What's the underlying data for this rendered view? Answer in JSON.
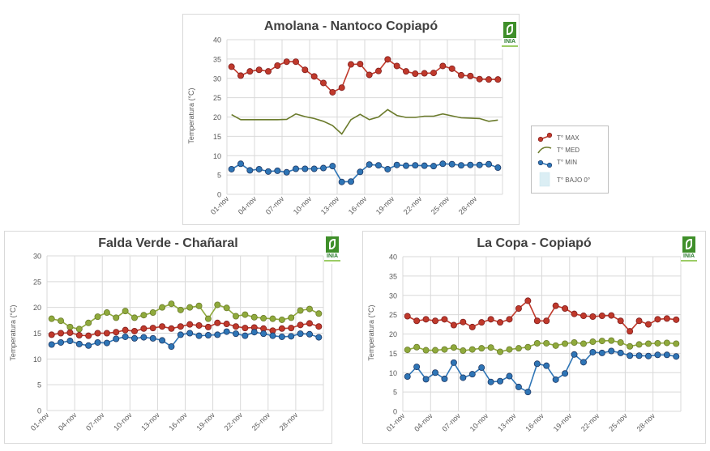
{
  "legend": {
    "max_label": "T° MAX",
    "med_label": "T° MED",
    "min_label": "T° MIN",
    "below_label": "T° BAJO 0°"
  },
  "logo_text": "INIA",
  "colors": {
    "max": "#c0392b",
    "max_dark": "#7f1d1d",
    "med": "#8faa3c",
    "med_line": "#6b7b2c",
    "min": "#2e75b6",
    "min_dark": "#1f3864",
    "below_fill": "#dbeef4",
    "grid": "#d9d9d9"
  },
  "chart_data": [
    {
      "type": "line",
      "title": "Amolana - Nantoco Copiapó",
      "ylabel": "Temperatura (°C)",
      "xlabel": "",
      "ylim": [
        0,
        40
      ],
      "yticks": [
        0,
        5,
        10,
        15,
        20,
        25,
        30,
        35,
        40
      ],
      "x_tick_labels": [
        "01-nov",
        "04-nov",
        "07-nov",
        "10-nov",
        "13-nov",
        "16-nov",
        "19-nov",
        "22-nov",
        "25-nov",
        "28-nov"
      ],
      "days": 30,
      "series": [
        {
          "name": "T° MAX",
          "style": "marker",
          "values": [
            33,
            30.7,
            31.8,
            32.2,
            31.8,
            33.3,
            34.3,
            34.3,
            32.2,
            30.5,
            28.8,
            26.4,
            27.6,
            33.6,
            33.7,
            30.9,
            31.9,
            34.9,
            33.2,
            31.8,
            31.2,
            31.3,
            31.4,
            33.2,
            32.5,
            30.8,
            30.6,
            29.8,
            29.7,
            29.7
          ]
        },
        {
          "name": "T° MED",
          "style": "line",
          "values": [
            20.6,
            19.3,
            19.3,
            19.3,
            19.3,
            19.3,
            19.4,
            20.8,
            20.1,
            19.6,
            18.9,
            17.8,
            15.6,
            19.3,
            20.7,
            19.3,
            20.0,
            21.9,
            20.4,
            19.9,
            19.9,
            20.2,
            20.2,
            20.8,
            20.3,
            19.8,
            19.7,
            19.6,
            18.9,
            19.2
          ]
        },
        {
          "name": "T° MIN",
          "style": "marker",
          "values": [
            6.5,
            7.9,
            6.2,
            6.5,
            5.9,
            6.1,
            5.7,
            6.6,
            6.6,
            6.6,
            6.8,
            7.3,
            3.2,
            3.3,
            5.8,
            7.7,
            7.5,
            6.5,
            7.6,
            7.4,
            7.5,
            7.4,
            7.3,
            7.9,
            7.8,
            7.5,
            7.6,
            7.6,
            7.8,
            6.9
          ]
        }
      ]
    },
    {
      "type": "line",
      "title": "Falda Verde  - Chañaral",
      "ylabel": "Temperatura (°C)",
      "xlabel": "",
      "ylim": [
        0,
        30
      ],
      "yticks": [
        0,
        5,
        10,
        15,
        20,
        25,
        30
      ],
      "x_tick_labels": [
        "01-nov",
        "04-nov",
        "07-nov",
        "10-nov",
        "13-nov",
        "16-nov",
        "19-nov",
        "22-nov",
        "25-nov",
        "28-nov"
      ],
      "days": 30,
      "series": [
        {
          "name": "T° MED",
          "style": "marker",
          "values": [
            17.8,
            17.4,
            16.2,
            15.8,
            17.0,
            18.2,
            19.0,
            18.0,
            19.3,
            18.0,
            18.5,
            19.0,
            20.0,
            20.7,
            19.5,
            20.0,
            20.3,
            17.8,
            20.5,
            19.9,
            18.3,
            18.6,
            18.1,
            17.9,
            17.8,
            17.6,
            18.0,
            19.4,
            19.7,
            18.8
          ]
        },
        {
          "name": "T° MAX",
          "style": "marker",
          "values": [
            14.7,
            15.0,
            15.1,
            14.6,
            14.5,
            15.0,
            15.0,
            15.2,
            15.6,
            15.4,
            15.9,
            16.0,
            16.3,
            15.9,
            16.3,
            16.7,
            16.5,
            16.2,
            17.0,
            16.8,
            16.3,
            16.0,
            16.1,
            15.9,
            15.5,
            15.9,
            16.0,
            16.6,
            16.9,
            16.3
          ]
        },
        {
          "name": "T° MIN",
          "style": "marker",
          "values": [
            12.8,
            13.2,
            13.5,
            12.9,
            12.6,
            13.2,
            13.1,
            13.9,
            14.3,
            14.0,
            14.2,
            14.0,
            13.6,
            12.4,
            14.7,
            15.0,
            14.5,
            14.6,
            14.7,
            15.3,
            14.9,
            14.5,
            15.2,
            14.9,
            14.5,
            14.3,
            14.4,
            14.9,
            14.8,
            14.2
          ]
        }
      ]
    },
    {
      "type": "line",
      "title": "La Copa - Copiapó",
      "ylabel": "Temperatura (°C)",
      "xlabel": "",
      "ylim": [
        0,
        40
      ],
      "yticks": [
        0,
        5,
        10,
        15,
        20,
        25,
        30,
        35,
        40
      ],
      "x_tick_labels": [
        "01-nov",
        "04-nov",
        "07-nov",
        "10-nov",
        "13-nov",
        "16-nov",
        "19-nov",
        "22-nov",
        "25-nov",
        "28-nov"
      ],
      "days": 30,
      "series": [
        {
          "name": "T° MAX",
          "style": "marker",
          "values": [
            24.6,
            23.4,
            23.8,
            23.4,
            23.8,
            22.3,
            23.1,
            21.8,
            23.0,
            23.8,
            23.0,
            23.8,
            26.6,
            28.6,
            23.4,
            23.4,
            27.3,
            26.6,
            25.2,
            24.7,
            24.5,
            24.7,
            24.8,
            23.4,
            20.7,
            23.4,
            22.5,
            23.8,
            24.0,
            23.7
          ]
        },
        {
          "name": "T° MED",
          "style": "marker",
          "values": [
            15.9,
            16.6,
            15.8,
            15.8,
            16.0,
            16.5,
            15.7,
            16.0,
            16.3,
            16.5,
            15.4,
            16.0,
            16.3,
            16.6,
            17.6,
            17.6,
            17.0,
            17.5,
            17.8,
            17.5,
            18.0,
            18.2,
            18.3,
            17.8,
            16.8,
            17.3,
            17.5,
            17.6,
            17.7,
            17.5
          ]
        },
        {
          "name": "T° MIN",
          "style": "marker",
          "values": [
            9.0,
            11.5,
            8.3,
            10.0,
            8.4,
            12.6,
            8.7,
            9.6,
            11.3,
            7.6,
            7.8,
            9.1,
            6.3,
            5.0,
            12.3,
            11.8,
            8.2,
            9.8,
            14.7,
            12.7,
            15.3,
            15.1,
            15.6,
            15.1,
            14.4,
            14.4,
            14.3,
            14.6,
            14.6,
            14.2
          ]
        }
      ]
    }
  ]
}
